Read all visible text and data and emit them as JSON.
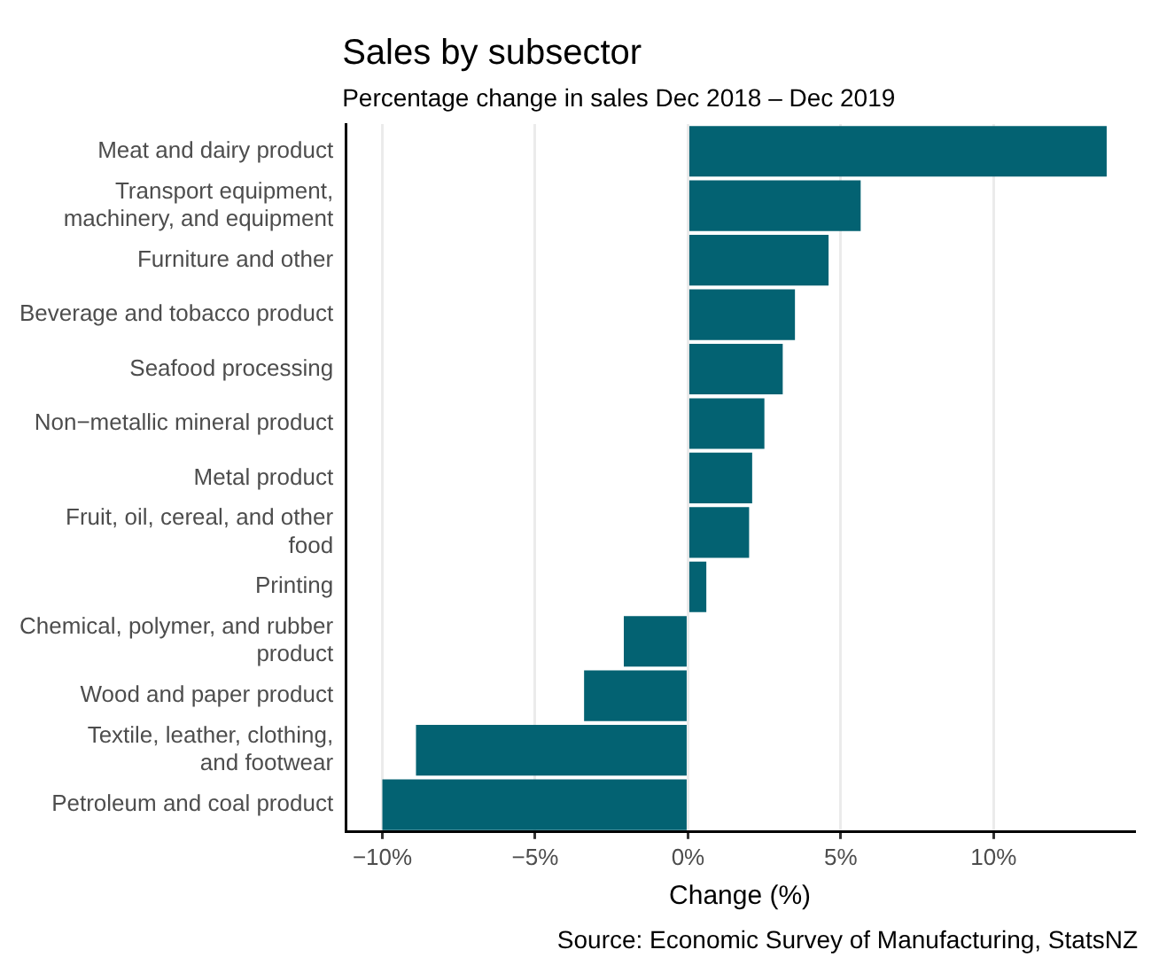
{
  "chart_data": {
    "type": "bar",
    "orientation": "horizontal",
    "title": "Sales by subsector",
    "subtitle": "Percentage change in sales Dec 2018 – Dec 2019",
    "xlabel": "Change (%)",
    "categories": [
      "Meat and dairy product",
      "Transport equipment, machinery, and equipment",
      "Furniture and other",
      "Beverage and tobacco product",
      "Seafood processing",
      "Non−metallic mineral product",
      "Metal product",
      "Fruit, oil, cereal, and other food",
      "Printing",
      "Chemical, polymer, and rubber product",
      "Wood and paper product",
      "Textile, leather, clothing, and footwear",
      "Petroleum and coal product"
    ],
    "values": [
      13.7,
      5.65,
      4.6,
      3.5,
      3.1,
      2.5,
      2.1,
      2.0,
      0.6,
      -2.1,
      -3.4,
      -8.9,
      -10.0
    ],
    "color": "#036272",
    "xlim": [
      -11.2,
      14.6
    ],
    "xticks": [
      {
        "value": -10,
        "label": "−10%"
      },
      {
        "value": -5,
        "label": "−5%"
      },
      {
        "value": 0,
        "label": "0%"
      },
      {
        "value": 5,
        "label": "5%"
      },
      {
        "value": 10,
        "label": "10%"
      }
    ],
    "grid": "x",
    "legend": false,
    "annotations": [
      "Source: Economic Survey of Manufacturing, StatsNZ"
    ]
  }
}
